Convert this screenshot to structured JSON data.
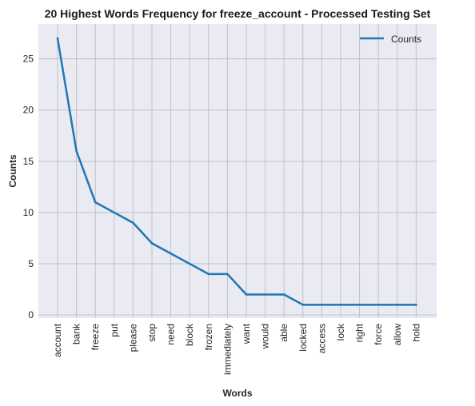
{
  "chart_data": {
    "type": "line",
    "title": "20 Highest Words Frequency for freeze_account - Processed Testing Set",
    "xlabel": "Words",
    "ylabel": "Counts",
    "categories": [
      "account",
      "bank",
      "freeze",
      "put",
      "please",
      "stop",
      "need",
      "block",
      "frozen",
      "immediately",
      "want",
      "would",
      "able",
      "locked",
      "access",
      "lock",
      "right",
      "force",
      "allow",
      "hold"
    ],
    "series": [
      {
        "name": "Counts",
        "values": [
          27,
          16,
          11,
          10,
          9,
          7,
          6,
          5,
          4,
          4,
          2,
          2,
          2,
          1,
          1,
          1,
          1,
          1,
          1,
          1
        ],
        "color": "#1f77b4"
      }
    ],
    "yticks": [
      0,
      5,
      10,
      15,
      20,
      25
    ],
    "ylim": [
      -0.3,
      28.4
    ],
    "grid": true,
    "legend_position": "top-right",
    "background_color": "#eaeaf2",
    "grid_color": "#c0c0c8"
  }
}
